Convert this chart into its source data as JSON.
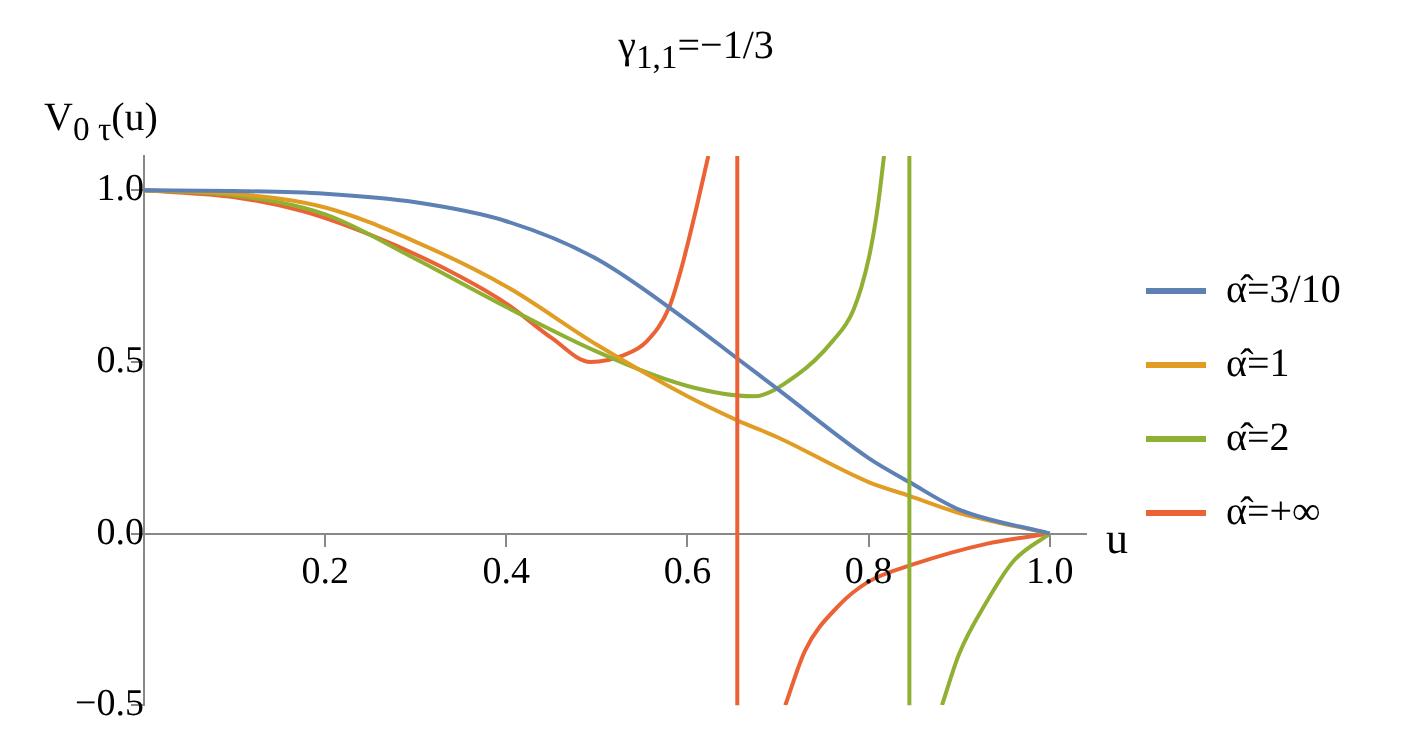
{
  "chart_data": {
    "type": "line",
    "title": "γ$_{1,1}$=−1/3",
    "xlabel": "u",
    "ylabel": "V$_{0 τ}$(u)",
    "series": [
      {
        "name": "α̂=3/10",
        "color": "#5e81b5",
        "x": [
          0,
          0.1,
          0.2,
          0.3,
          0.4,
          0.5,
          0.6,
          0.655,
          0.7,
          0.8,
          0.845,
          0.9,
          1.0
        ],
        "values": [
          1,
          0.998,
          0.99,
          0.965,
          0.91,
          0.8,
          0.62,
          0.51,
          0.42,
          0.22,
          0.15,
          0.07,
          0
        ]
      },
      {
        "name": "α̂=1",
        "color": "#e19c24",
        "x": [
          0,
          0.1,
          0.2,
          0.3,
          0.4,
          0.5,
          0.6,
          0.655,
          0.7,
          0.8,
          0.845,
          0.9,
          1.0
        ],
        "values": [
          1,
          0.99,
          0.95,
          0.85,
          0.72,
          0.55,
          0.4,
          0.33,
          0.28,
          0.15,
          0.11,
          0.06,
          0
        ]
      },
      {
        "name": "α̂=2",
        "color": "#8fb032",
        "x": [
          0,
          0.1,
          0.2,
          0.3,
          0.4,
          0.5,
          0.6,
          0.673,
          0.72,
          0.76,
          0.783,
          0.8,
          0.81,
          0.817,
          0.845,
          0.881,
          0.9,
          0.93,
          0.96,
          1.0
        ],
        "values": [
          1,
          0.985,
          0.93,
          0.8,
          0.66,
          0.53,
          0.43,
          0.4,
          0.46,
          0.56,
          0.65,
          0.8,
          0.95,
          1.1,
          null,
          -0.5,
          -0.35,
          -0.2,
          -0.08,
          0
        ]
      },
      {
        "name": "α̂=+∞",
        "color": "#eb6235",
        "x": [
          0,
          0.1,
          0.174,
          0.25,
          0.326,
          0.4,
          0.45,
          0.493,
          0.53,
          0.555,
          0.58,
          0.593,
          0.61,
          0.623,
          0.655,
          0.708,
          0.73,
          0.767,
          0.8,
          0.849,
          0.93,
          1.0
        ],
        "values": [
          1,
          0.98,
          0.94,
          0.87,
          0.78,
          0.67,
          0.57,
          0.5,
          0.52,
          0.56,
          0.66,
          0.77,
          0.95,
          1.1,
          null,
          -0.5,
          -0.34,
          -0.21,
          -0.14,
          -0.09,
          -0.03,
          0
        ]
      }
    ],
    "ref_lines": [
      {
        "axis": "x",
        "value": 0.655,
        "color": "#eb6235"
      },
      {
        "axis": "x",
        "value": 0.845,
        "color": "#8fb032"
      }
    ],
    "xlim": [
      0,
      1.04
    ],
    "ylim": [
      -0.5,
      1.1
    ],
    "xticks": [
      0.2,
      0.4,
      0.6,
      0.8,
      {
        "value": 1,
        "label": "1.0"
      }
    ],
    "yticks": [
      {
        "value": -0.5,
        "label": "−0.5"
      },
      {
        "value": 0,
        "label": "0.0"
      },
      0.5,
      {
        "value": 1,
        "label": "1.0"
      }
    ],
    "grid": false,
    "legend": "right",
    "line_style": "solid"
  }
}
